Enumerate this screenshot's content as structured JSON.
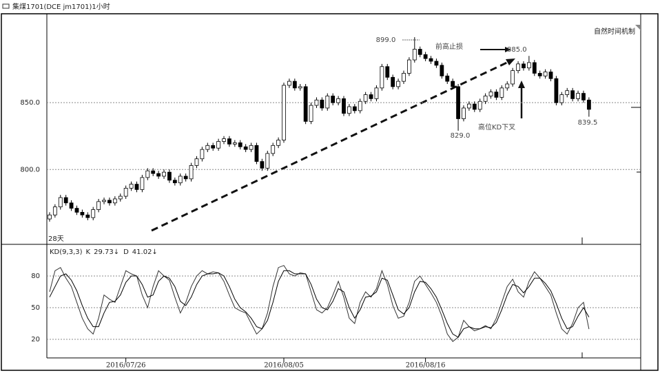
{
  "header": {
    "title": "集煤1701(DCE jm1701)1小时"
  },
  "chart_data": [
    {
      "type": "candlestick",
      "note": "自然时间机制",
      "open": [
        763,
        766,
        772,
        779,
        775,
        771,
        768,
        766,
        764,
        770,
        776,
        777,
        775,
        778,
        780,
        786,
        789,
        785,
        794,
        799,
        797,
        795,
        798,
        792,
        790,
        795,
        793,
        803,
        808,
        815,
        818,
        816,
        821,
        823,
        819,
        820,
        817,
        815,
        818,
        806,
        801,
        812,
        818,
        822,
        863,
        866,
        861,
        862,
        836,
        848,
        852,
        846,
        855,
        850,
        853,
        842,
        847,
        844,
        851,
        856,
        853,
        861,
        877,
        869,
        862,
        866,
        872,
        882,
        890,
        886,
        883,
        881,
        878,
        870,
        866,
        862,
        838,
        846,
        849,
        845,
        851,
        855,
        858,
        854,
        861,
        864,
        874,
        879,
        876,
        880,
        872,
        870,
        873,
        868,
        850,
        856,
        859,
        853,
        857,
        852
      ],
      "high": [
        768,
        774,
        781,
        781,
        777,
        773,
        770,
        768,
        772,
        778,
        779,
        779,
        780,
        782,
        788,
        791,
        791,
        796,
        801,
        801,
        799,
        800,
        800,
        794,
        797,
        797,
        805,
        810,
        817,
        820,
        820,
        823,
        825,
        825,
        822,
        822,
        819,
        820,
        820,
        808,
        814,
        820,
        824,
        865,
        868,
        868,
        864,
        864,
        850,
        854,
        854,
        857,
        857,
        855,
        855,
        849,
        849,
        853,
        858,
        858,
        863,
        879,
        879,
        871,
        868,
        874,
        884,
        899,
        892,
        888,
        885,
        883,
        880,
        872,
        868,
        864,
        848,
        851,
        851,
        853,
        857,
        860,
        860,
        863,
        866,
        876,
        881,
        881,
        885,
        882,
        874,
        875,
        875,
        870,
        858,
        861,
        861,
        859,
        859,
        854
      ],
      "low": [
        761,
        764,
        770,
        773,
        769,
        766,
        764,
        762,
        762,
        768,
        774,
        773,
        773,
        776,
        778,
        784,
        783,
        783,
        792,
        795,
        793,
        793,
        790,
        788,
        788,
        791,
        791,
        801,
        806,
        813,
        814,
        814,
        819,
        817,
        817,
        815,
        813,
        813,
        804,
        799,
        799,
        810,
        816,
        820,
        861,
        859,
        859,
        834,
        834,
        846,
        844,
        844,
        848,
        848,
        840,
        840,
        842,
        842,
        849,
        851,
        851,
        859,
        867,
        860,
        860,
        864,
        870,
        880,
        884,
        881,
        879,
        876,
        868,
        864,
        860,
        829,
        836,
        844,
        843,
        843,
        849,
        853,
        852,
        852,
        859,
        862,
        872,
        874,
        874,
        870,
        868,
        868,
        866,
        848,
        848,
        854,
        851,
        851,
        850,
        839.5
      ],
      "close": [
        766,
        772,
        779,
        775,
        771,
        768,
        766,
        764,
        770,
        776,
        777,
        775,
        778,
        780,
        786,
        789,
        785,
        794,
        799,
        797,
        795,
        798,
        792,
        790,
        795,
        793,
        803,
        808,
        815,
        818,
        816,
        821,
        823,
        819,
        820,
        817,
        815,
        818,
        806,
        801,
        812,
        818,
        822,
        863,
        866,
        861,
        862,
        836,
        848,
        852,
        846,
        855,
        850,
        853,
        842,
        847,
        844,
        851,
        856,
        853,
        861,
        877,
        869,
        862,
        866,
        872,
        882,
        890,
        886,
        883,
        881,
        878,
        870,
        866,
        862,
        838,
        846,
        849,
        845,
        851,
        855,
        858,
        854,
        861,
        864,
        874,
        879,
        876,
        880,
        872,
        870,
        873,
        868,
        850,
        856,
        859,
        853,
        857,
        852,
        845
      ],
      "up_color": "#ffffff",
      "down_color": "#000000",
      "outline_color": "#000000",
      "ylim": [
        744,
        915.5
      ],
      "yticks": [
        {
          "value": 800,
          "label": "800.0"
        },
        {
          "value": 850,
          "label": "850.0"
        }
      ],
      "grid": true,
      "annotations": [
        "899.0",
        "885.0",
        "829.0",
        "839.5",
        "前高止损",
        "高位KD下叉",
        "28天"
      ]
    },
    {
      "type": "line",
      "indicator": "KD(9,3,3)",
      "series": [
        {
          "name": "K",
          "current_label": "29.73↓",
          "color": "#333333",
          "values": [
            65,
            85,
            88,
            78,
            70,
            55,
            40,
            30,
            25,
            40,
            62,
            58,
            55,
            70,
            85,
            82,
            80,
            62,
            50,
            70,
            85,
            80,
            76,
            60,
            45,
            55,
            70,
            80,
            85,
            82,
            84,
            83,
            75,
            62,
            50,
            47,
            45,
            35,
            25,
            30,
            45,
            70,
            88,
            90,
            82,
            80,
            83,
            82,
            65,
            48,
            45,
            50,
            62,
            75,
            60,
            40,
            35,
            55,
            65,
            60,
            68,
            85,
            72,
            52,
            40,
            42,
            55,
            75,
            80,
            72,
            64,
            55,
            42,
            25,
            18,
            22,
            38,
            32,
            28,
            30,
            33,
            30,
            40,
            55,
            70,
            77,
            65,
            60,
            75,
            84,
            78,
            70,
            62,
            45,
            30,
            25,
            35,
            50,
            55,
            29.73
          ]
        },
        {
          "name": "D",
          "current_label": "41.02↓",
          "color": "#000000",
          "values": [
            60,
            70,
            80,
            82,
            76,
            66,
            52,
            40,
            32,
            32,
            45,
            55,
            56,
            62,
            74,
            80,
            80,
            72,
            60,
            62,
            75,
            80,
            78,
            70,
            56,
            52,
            60,
            72,
            80,
            82,
            82,
            83,
            80,
            70,
            58,
            50,
            46,
            40,
            32,
            30,
            38,
            55,
            75,
            85,
            85,
            82,
            82,
            82,
            72,
            58,
            50,
            48,
            56,
            68,
            65,
            50,
            40,
            48,
            60,
            61,
            65,
            78,
            76,
            62,
            48,
            44,
            50,
            65,
            75,
            74,
            68,
            60,
            48,
            35,
            25,
            22,
            30,
            32,
            30,
            30,
            32,
            31,
            36,
            48,
            62,
            72,
            70,
            64,
            70,
            78,
            78,
            73,
            66,
            54,
            40,
            30,
            32,
            42,
            50,
            41.02
          ]
        }
      ],
      "ylim": [
        2.4,
        110
      ],
      "yticks": [
        20,
        50,
        80
      ],
      "grid": true,
      "xlim": [
        -0.5,
        108.5
      ],
      "xticks": [
        {
          "value": 14,
          "label": "2016/07/26"
        },
        {
          "value": 43,
          "label": "2016/08/05"
        },
        {
          "value": 69,
          "label": "2016/08/16"
        }
      ]
    }
  ]
}
